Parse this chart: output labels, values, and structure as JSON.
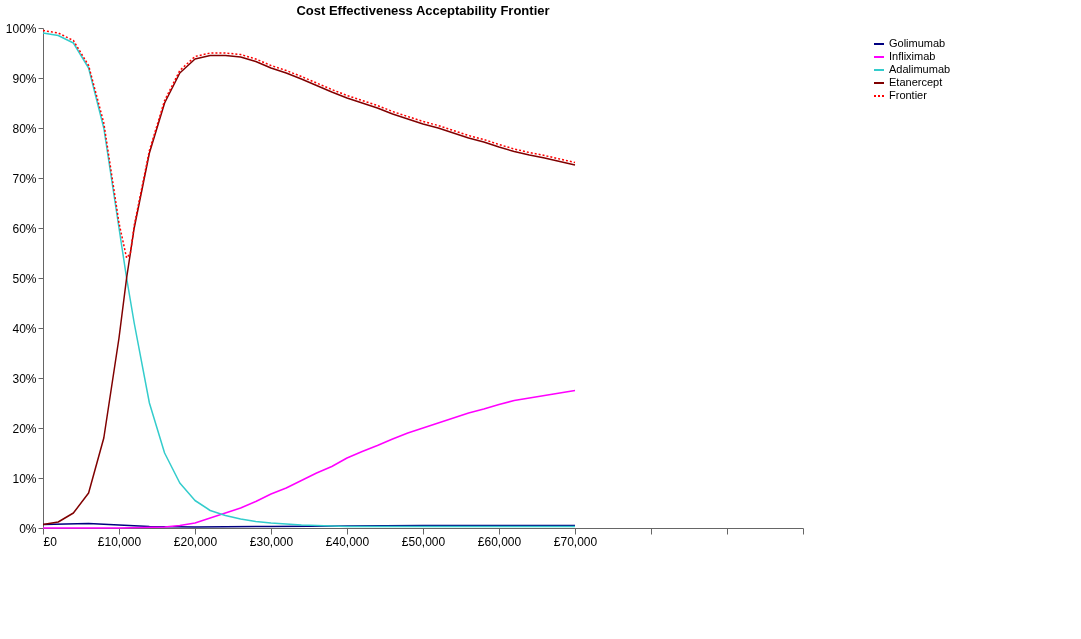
{
  "chart_data": {
    "type": "line",
    "title": "Cost Effectiveness Acceptability Frontier",
    "xlim": [
      0,
      100000
    ],
    "xticks": [
      {
        "value": 0,
        "label": "£0"
      },
      {
        "value": 10000,
        "label": "£10,000"
      },
      {
        "value": 20000,
        "label": "£20,000"
      },
      {
        "value": 30000,
        "label": "£30,000"
      },
      {
        "value": 40000,
        "label": "£40,000"
      },
      {
        "value": 50000,
        "label": "£50,000"
      },
      {
        "value": 60000,
        "label": "£60,000"
      },
      {
        "value": 70000,
        "label": "£70,000"
      },
      {
        "value": 80000,
        "label": null
      },
      {
        "value": 90000,
        "label": null
      },
      {
        "value": 100000,
        "label": null
      }
    ],
    "ylim": [
      0,
      100
    ],
    "yticks": [
      {
        "value": 0,
        "label": "0%"
      },
      {
        "value": 10,
        "label": "10%"
      },
      {
        "value": 20,
        "label": "20%"
      },
      {
        "value": 30,
        "label": "30%"
      },
      {
        "value": 40,
        "label": "40%"
      },
      {
        "value": 50,
        "label": "50%"
      },
      {
        "value": 60,
        "label": "60%"
      },
      {
        "value": 70,
        "label": "70%"
      },
      {
        "value": 80,
        "label": "80%"
      },
      {
        "value": 90,
        "label": "90%"
      },
      {
        "value": 100,
        "label": "100%"
      }
    ],
    "grid": false,
    "legend": "right",
    "marker": "none",
    "series": [
      {
        "name": "Golimumab",
        "color": "#000080",
        "line_style": "solid",
        "x": [
          0,
          6000,
          10000,
          14000,
          20000,
          30000,
          40000,
          50000,
          60000,
          70000
        ],
        "values": [
          0.7,
          0.9,
          0.6,
          0.3,
          0.2,
          0.3,
          0.4,
          0.5,
          0.5,
          0.5
        ]
      },
      {
        "name": "Infliximab",
        "color": "#ff00ff",
        "line_style": "solid",
        "x": [
          0,
          10000,
          16000,
          18000,
          20000,
          22000,
          24000,
          26000,
          28000,
          30000,
          32000,
          34000,
          36000,
          38000,
          40000,
          42000,
          44000,
          46000,
          48000,
          50000,
          52000,
          54000,
          56000,
          58000,
          60000,
          62000,
          64000,
          66000,
          68000,
          70000
        ],
        "values": [
          0,
          0,
          0.2,
          0.5,
          1,
          2,
          3,
          4,
          5.3,
          6.8,
          8,
          9.5,
          11,
          12.3,
          14,
          15.3,
          16.5,
          17.8,
          19,
          20,
          21,
          22,
          23,
          23.8,
          24.7,
          25.5,
          26,
          26.5,
          27,
          27.5
        ]
      },
      {
        "name": "Adalimumab",
        "color": "#33cccc",
        "line_style": "solid",
        "x": [
          0,
          2000,
          4000,
          6000,
          8000,
          10000,
          11000,
          12000,
          14000,
          16000,
          18000,
          20000,
          22000,
          24000,
          26000,
          28000,
          30000,
          34000,
          38000,
          40000,
          50000,
          60000,
          70000
        ],
        "values": [
          99,
          98.5,
          97,
          92,
          80,
          60,
          50,
          41,
          25,
          15,
          9,
          5.5,
          3.5,
          2.5,
          1.8,
          1.3,
          1,
          0.6,
          0.4,
          0.3,
          0.3,
          0.3,
          0.3
        ]
      },
      {
        "name": "Etanercept",
        "color": "#800000",
        "line_style": "solid",
        "x": [
          0,
          2000,
          4000,
          6000,
          8000,
          10000,
          11000,
          12000,
          14000,
          16000,
          18000,
          20000,
          22000,
          24000,
          26000,
          28000,
          30000,
          32000,
          34000,
          36000,
          38000,
          40000,
          42000,
          44000,
          46000,
          48000,
          50000,
          52000,
          54000,
          56000,
          58000,
          60000,
          62000,
          64000,
          66000,
          68000,
          70000
        ],
        "values": [
          0.7,
          1.2,
          3,
          7,
          18,
          38,
          50,
          60,
          75,
          85,
          91,
          93.8,
          94.5,
          94.5,
          94.2,
          93.3,
          92,
          91,
          89.8,
          88.5,
          87.2,
          86,
          85,
          84,
          82.8,
          81.8,
          80.8,
          80,
          79,
          78,
          77.2,
          76.2,
          75.3,
          74.6,
          74,
          73.3,
          72.6
        ]
      },
      {
        "name": "Frontier",
        "color": "#ff0000",
        "line_style": "dotted",
        "x": [
          0,
          2000,
          4000,
          6000,
          8000,
          10000,
          11000,
          11500,
          12000,
          14000,
          16000,
          18000,
          20000,
          22000,
          24000,
          26000,
          28000,
          30000,
          32000,
          34000,
          36000,
          38000,
          40000,
          42000,
          44000,
          46000,
          48000,
          50000,
          52000,
          54000,
          56000,
          58000,
          60000,
          62000,
          64000,
          66000,
          68000,
          70000
        ],
        "values": [
          99.5,
          99,
          97.5,
          92.5,
          81,
          61,
          54,
          55,
          60.5,
          75.5,
          85.5,
          91.5,
          94.3,
          95,
          95,
          94.7,
          93.8,
          92.5,
          91.5,
          90.3,
          89,
          87.7,
          86.5,
          85.5,
          84.5,
          83.3,
          82.3,
          81.3,
          80.5,
          79.5,
          78.5,
          77.7,
          76.7,
          75.8,
          75.1,
          74.5,
          73.8,
          73.1
        ]
      }
    ]
  }
}
